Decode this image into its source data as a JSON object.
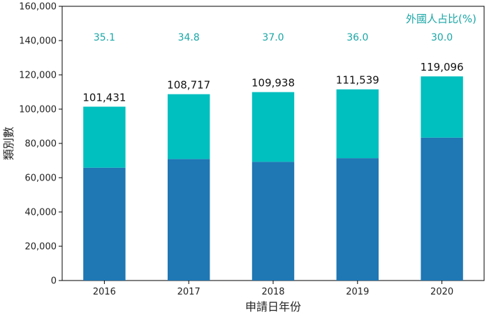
{
  "chart_data": {
    "type": "bar",
    "stacked": true,
    "categories": [
      "2016",
      "2017",
      "2018",
      "2019",
      "2020"
    ],
    "series": [
      {
        "values": [
          65827,
          70883,
          69261,
          71385,
          83367
        ],
        "color": "#1f77b4"
      },
      {
        "values": [
          35604,
          37834,
          40677,
          40154,
          35729
        ],
        "color": "#00bfbf"
      }
    ],
    "totals": [
      "101,431",
      "108,717",
      "109,938",
      "111,539",
      "119,096"
    ],
    "percentages": [
      "35.1",
      "34.8",
      "37.0",
      "36.0",
      "30.0"
    ],
    "percent_label_title": "外國人占比(%)",
    "xlabel": "申請日年份",
    "ylabel": "類別數",
    "ylim": [
      0,
      160000
    ],
    "yticks": [
      "0",
      "20,000",
      "40,000",
      "60,000",
      "80,000",
      "100,000",
      "120,000",
      "140,000",
      "160,000"
    ],
    "grid": false,
    "accent_color": "#1aa6a6"
  }
}
